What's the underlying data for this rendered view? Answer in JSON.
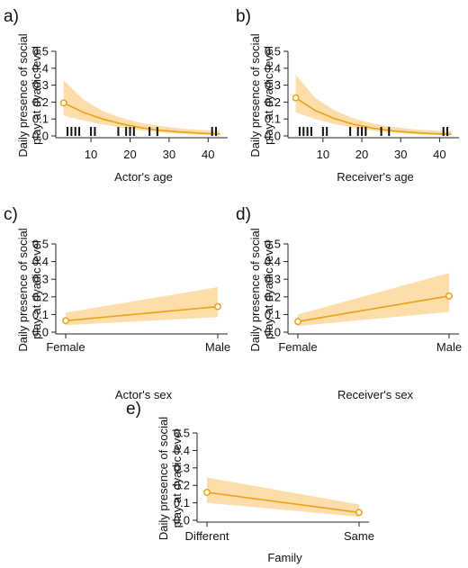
{
  "colors": {
    "line": "#E8A317",
    "band": "#FDD79A",
    "axis": "#222222"
  },
  "ylabel_lines": [
    "Daily presence of social",
    "play at dyadic level"
  ],
  "chart_data": [
    {
      "id": "a",
      "panel_label": "a)",
      "type": "line",
      "xlabel": "Actor's age",
      "ylabel": "Daily presence of social play at dyadic level",
      "xlim": [
        1,
        45
      ],
      "ylim": [
        0,
        0.5
      ],
      "xticks": [
        10,
        20,
        30,
        40
      ],
      "yticks": [
        0.0,
        0.1,
        0.2,
        0.3,
        0.4,
        0.5
      ],
      "x": [
        3,
        8,
        13,
        18,
        23,
        28,
        33,
        38,
        43
      ],
      "y": [
        0.195,
        0.14,
        0.1,
        0.07,
        0.048,
        0.033,
        0.023,
        0.016,
        0.011
      ],
      "lower": [
        0.12,
        0.092,
        0.068,
        0.048,
        0.032,
        0.02,
        0.012,
        0.007,
        0.004
      ],
      "upper": [
        0.33,
        0.215,
        0.148,
        0.105,
        0.076,
        0.057,
        0.043,
        0.036,
        0.03
      ],
      "rug": [
        4,
        5,
        6,
        7,
        10,
        11,
        17,
        19,
        20,
        21,
        25,
        27,
        41,
        42
      ]
    },
    {
      "id": "b",
      "panel_label": "b)",
      "type": "line",
      "xlabel": "Receiver's age",
      "ylabel": "Daily presence of social play at dyadic level",
      "xlim": [
        1,
        45
      ],
      "ylim": [
        0,
        0.5
      ],
      "xticks": [
        10,
        20,
        30,
        40
      ],
      "yticks": [
        0.0,
        0.1,
        0.2,
        0.3,
        0.4,
        0.5
      ],
      "x": [
        3,
        8,
        13,
        18,
        23,
        28,
        33,
        38,
        43
      ],
      "y": [
        0.225,
        0.15,
        0.102,
        0.068,
        0.045,
        0.03,
        0.02,
        0.014,
        0.01
      ],
      "lower": [
        0.14,
        0.1,
        0.07,
        0.047,
        0.03,
        0.019,
        0.011,
        0.006,
        0.004
      ],
      "upper": [
        0.36,
        0.225,
        0.15,
        0.102,
        0.073,
        0.053,
        0.04,
        0.032,
        0.028
      ],
      "rug": [
        4,
        5,
        6,
        7,
        10,
        11,
        17,
        19,
        20,
        21,
        25,
        27,
        41,
        42
      ]
    },
    {
      "id": "c",
      "panel_label": "c)",
      "type": "line",
      "xlabel": "Actor's sex",
      "ylabel": "Daily presence of social play at dyadic level",
      "categories": [
        "Female",
        "Male"
      ],
      "ylim": [
        0,
        0.5
      ],
      "yticks": [
        0.0,
        0.1,
        0.2,
        0.3,
        0.4,
        0.5
      ],
      "values": [
        0.065,
        0.145
      ],
      "lower": [
        0.04,
        0.085
      ],
      "upper": [
        0.11,
        0.255
      ]
    },
    {
      "id": "d",
      "panel_label": "d)",
      "type": "line",
      "xlabel": "Receiver's sex",
      "ylabel": "Daily presence of social play at dyadic level",
      "categories": [
        "Female",
        "Male"
      ],
      "ylim": [
        0,
        0.5
      ],
      "yticks": [
        0.0,
        0.1,
        0.2,
        0.3,
        0.4,
        0.5
      ],
      "values": [
        0.06,
        0.205
      ],
      "lower": [
        0.035,
        0.115
      ],
      "upper": [
        0.1,
        0.335
      ]
    },
    {
      "id": "e",
      "panel_label": "e)",
      "type": "line",
      "xlabel": "Family",
      "ylabel": "Daily presence of social play at dyadic level",
      "categories": [
        "Different",
        "Same"
      ],
      "ylim": [
        0,
        0.5
      ],
      "yticks": [
        0.0,
        0.1,
        0.2,
        0.3,
        0.4,
        0.5
      ],
      "values": [
        0.16,
        0.045
      ],
      "lower": [
        0.1,
        0.02
      ],
      "upper": [
        0.245,
        0.09
      ]
    }
  ]
}
